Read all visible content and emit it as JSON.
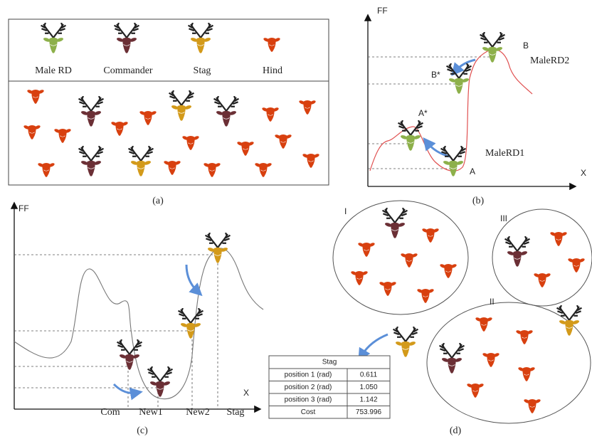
{
  "panel_a": {
    "legend": [
      "Male RD",
      "Commander",
      "Stag",
      "Hind"
    ],
    "label": "(a)"
  },
  "panel_b": {
    "y_axis": "FF",
    "x_axis": "X",
    "points": [
      "A",
      "A*",
      "B*",
      "B"
    ],
    "curve_labels": [
      "MaleRD1",
      "MaleRD2"
    ],
    "label": "(b)"
  },
  "panel_c": {
    "y_axis": "FF",
    "x_axis": "X",
    "points": [
      "Com",
      "New1",
      "New2",
      "Stag"
    ],
    "label": "(c)"
  },
  "panel_d": {
    "groups": [
      "I",
      "II",
      "III"
    ],
    "table": {
      "title": "Stag",
      "rows": [
        [
          "position 1 (rad)",
          "0.611"
        ],
        [
          "position 2 (rad)",
          "1.050"
        ],
        [
          "position 3 (rad)",
          "1.142"
        ],
        [
          "Cost",
          "753.996"
        ]
      ]
    },
    "label": "(d)"
  }
}
